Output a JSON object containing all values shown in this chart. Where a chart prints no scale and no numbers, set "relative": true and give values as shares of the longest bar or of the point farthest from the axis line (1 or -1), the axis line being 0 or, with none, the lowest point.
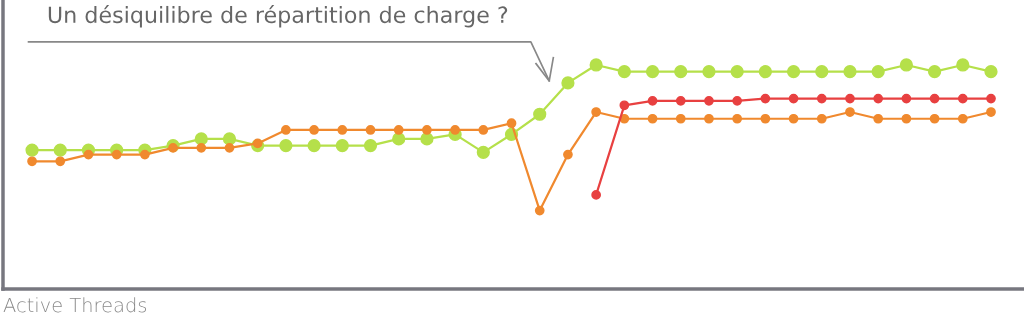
{
  "chart_data": {
    "type": "line",
    "relative": true,
    "xlabel": "Active Threads",
    "annotations": [
      "Un désiquilibre de répartition de charge ?"
    ],
    "categories": [
      null,
      null,
      null,
      null,
      null,
      null,
      null,
      null,
      null,
      null,
      null,
      null,
      null,
      null,
      null,
      null,
      null,
      null,
      null,
      null,
      null,
      null,
      null,
      null,
      null,
      null,
      null,
      null,
      null,
      null,
      null,
      null,
      null,
      null,
      null
    ],
    "series": [
      {
        "color": "#b5e04a",
        "values": [
          0.62,
          0.62,
          0.62,
          0.62,
          0.62,
          0.64,
          0.67,
          0.67,
          0.64,
          0.64,
          0.64,
          0.64,
          0.64,
          0.67,
          0.67,
          0.69,
          0.61,
          0.69,
          0.78,
          0.92,
          1,
          0.97,
          0.97,
          0.97,
          0.97,
          0.97,
          0.97,
          0.97,
          0.97,
          0.97,
          0.97,
          1,
          0.97,
          1,
          0.97
        ]
      },
      {
        "color": "#f0892e",
        "values": [
          0.57,
          0.57,
          0.6,
          0.6,
          0.6,
          0.63,
          0.63,
          0.63,
          0.65,
          0.71,
          0.71,
          0.71,
          0.71,
          0.71,
          0.71,
          0.71,
          0.71,
          0.74,
          0.35,
          0.6,
          0.79,
          0.76,
          0.76,
          0.76,
          0.76,
          0.76,
          0.76,
          0.76,
          0.76,
          0.79,
          0.76,
          0.76,
          0.76,
          0.76,
          0.79
        ]
      },
      {
        "color": "#e84040",
        "values": [
          null,
          null,
          null,
          null,
          null,
          null,
          null,
          null,
          null,
          null,
          null,
          null,
          null,
          null,
          null,
          null,
          null,
          null,
          null,
          null,
          0.42,
          0.82,
          0.84,
          0.84,
          0.84,
          0.84,
          0.85,
          0.85,
          0.85,
          0.85,
          0.85,
          0.85,
          0.85,
          0.85,
          0.85
        ]
      }
    ],
    "marker": "circle",
    "line_style": "solid"
  }
}
